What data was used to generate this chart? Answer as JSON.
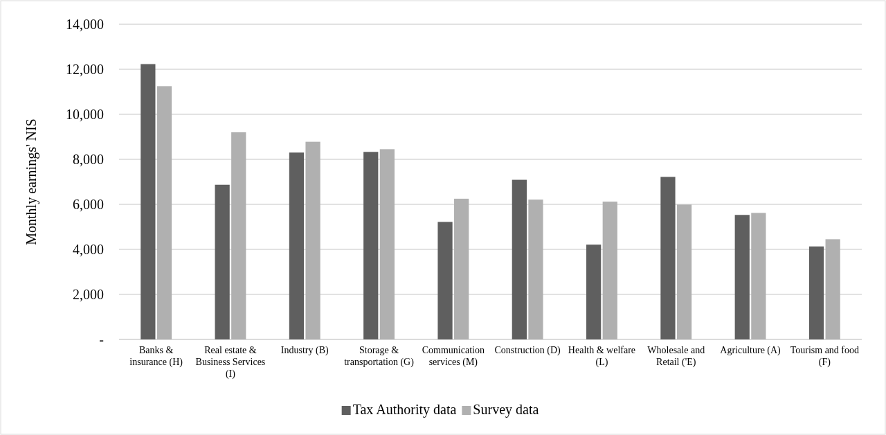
{
  "chart_data": {
    "type": "bar",
    "ylabel": "Monthly earnings' NIS",
    "categories": [
      "Banks & insurance (H)",
      "Real estate & Business Services (I)",
      "Industry (B)",
      "Storage & transportation (G)",
      "Communication services (M)",
      "Construction (D)",
      "Health & welfare (L)",
      "Wholesale and Retail ('E)",
      "Agriculture (A)",
      "Tourism and food (F)"
    ],
    "series": [
      {
        "name": "Tax Authority data",
        "color": "#5f5f5f",
        "values": [
          12230,
          6870,
          8300,
          8330,
          5220,
          7090,
          4210,
          7220,
          5530,
          4130
        ]
      },
      {
        "name": "Survey data",
        "color": "#b0b0b0",
        "values": [
          11250,
          9200,
          8780,
          8450,
          6250,
          6210,
          6120,
          5990,
          5620,
          4450
        ]
      }
    ],
    "ylim": [
      0,
      14000
    ],
    "yticks": [
      {
        "value": 0,
        "label": "-"
      },
      {
        "value": 2000,
        "label": "2,000"
      },
      {
        "value": 4000,
        "label": "4,000"
      },
      {
        "value": 6000,
        "label": "6,000"
      },
      {
        "value": 8000,
        "label": "8,000"
      },
      {
        "value": 10000,
        "label": "10,000"
      },
      {
        "value": 12000,
        "label": "12,000"
      },
      {
        "value": 14000,
        "label": "14,000"
      }
    ],
    "grid": "y",
    "legend": "bottom"
  }
}
